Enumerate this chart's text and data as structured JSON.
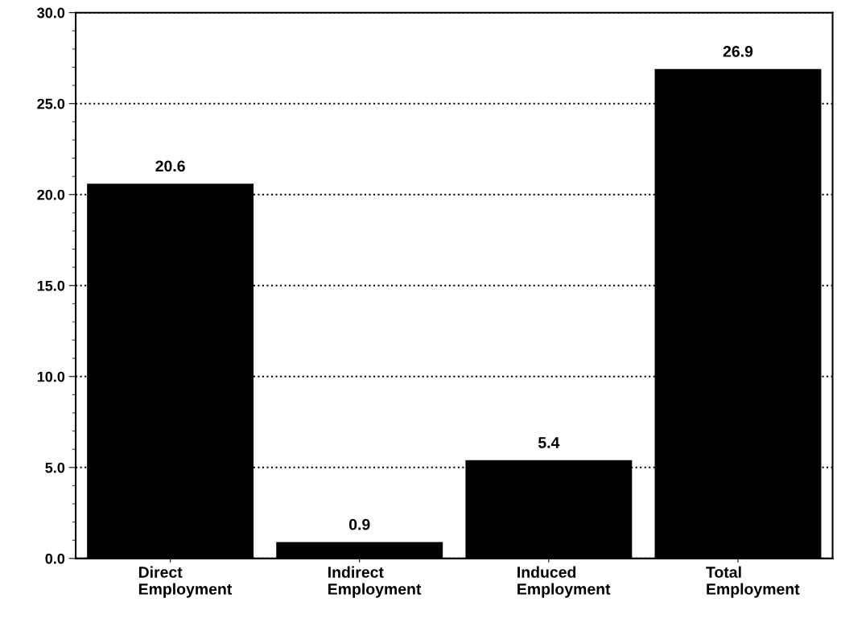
{
  "chart_data": {
    "type": "bar",
    "categories": [
      "Direct\nEmployment",
      "Indirect\nEmployment",
      "Induced\nEmployment",
      "Total\nEmployment"
    ],
    "values": [
      20.6,
      0.9,
      5.4,
      26.9
    ],
    "color": "#000000",
    "data_labels": true,
    "ylim": [
      0,
      30
    ],
    "yticks": [
      {
        "value": 0,
        "label": "0.0"
      },
      {
        "value": 5,
        "label": "5.0"
      },
      {
        "value": 10,
        "label": "10.0"
      },
      {
        "value": 15,
        "label": "15.0"
      },
      {
        "value": 20,
        "label": "20.0"
      },
      {
        "value": 25,
        "label": "25.0"
      },
      {
        "value": 30,
        "label": "30.0"
      }
    ],
    "grid": "y"
  }
}
